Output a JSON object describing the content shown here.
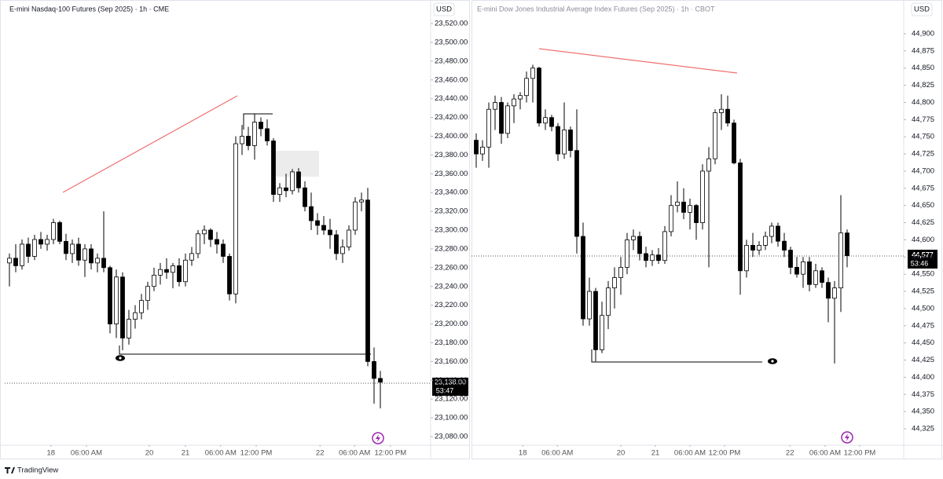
{
  "chart_data": [
    {
      "type": "candlestick",
      "title": "E-mini Nasdaq-100 Futures (Sep 2025) · 1h · CME",
      "currency": "USD",
      "last_price_label": "23,138.00",
      "countdown": "53:47",
      "up_color": "#ffffff",
      "down_color": "#000000",
      "grid": false,
      "xlim": [
        -0.75,
        67
      ],
      "ylim": [
        23068.3,
        23545.1
      ],
      "xticks": [
        {
          "value": 6.6,
          "label": "18"
        },
        {
          "value": 12.25,
          "label": "06:00 AM"
        },
        {
          "value": 22.25,
          "label": "20"
        },
        {
          "value": 28,
          "label": "21"
        },
        {
          "value": 33.6,
          "label": "06:00 AM"
        },
        {
          "value": 39.25,
          "label": "12:00 PM"
        },
        {
          "value": 49.4,
          "label": "22"
        },
        {
          "value": 54.9,
          "label": "06:00 AM"
        },
        {
          "value": 60.6,
          "label": "12:00 PM"
        }
      ],
      "yticks": [
        {
          "value": 23080,
          "label": "23,080.00"
        },
        {
          "value": 23100,
          "label": "23,100.00"
        },
        {
          "value": 23120,
          "label": "23,120.00"
        },
        {
          "value": 23140,
          "label": "23,140.00"
        },
        {
          "value": 23160,
          "label": "23,160.00"
        },
        {
          "value": 23180,
          "label": "23,180.00"
        },
        {
          "value": 23200,
          "label": "23,200.00"
        },
        {
          "value": 23220,
          "label": "23,220.00"
        },
        {
          "value": 23240,
          "label": "23,240.00"
        },
        {
          "value": 23260,
          "label": "23,260.00"
        },
        {
          "value": 23280,
          "label": "23,280.00"
        },
        {
          "value": 23300,
          "label": "23,300.00"
        },
        {
          "value": 23320,
          "label": "23,320.00"
        },
        {
          "value": 23340,
          "label": "23,340.00"
        },
        {
          "value": 23360,
          "label": "23,360.00"
        },
        {
          "value": 23380,
          "label": "23,380.00"
        },
        {
          "value": 23400,
          "label": "23,400.00"
        },
        {
          "value": 23420,
          "label": "23,420.00"
        },
        {
          "value": 23440,
          "label": "23,440.00"
        },
        {
          "value": 23460,
          "label": "23,460.00"
        },
        {
          "value": 23480,
          "label": "23,480.00"
        },
        {
          "value": 23500,
          "label": "23,500.00"
        },
        {
          "value": 23520,
          "label": "23,520.00"
        }
      ],
      "open": [
        23265,
        23270,
        23262,
        23285,
        23272,
        23290,
        23285,
        23290,
        23308,
        23288,
        23275,
        23285,
        23268,
        23280,
        23265,
        23270,
        23260,
        23200,
        23250,
        23185,
        23205,
        23212,
        23225,
        23240,
        23252,
        23258,
        23255,
        23262,
        23245,
        23268,
        23275,
        23296,
        23300,
        23290,
        23285,
        23272,
        23232,
        23392,
        23400,
        23390,
        23415,
        23408,
        23395,
        23338,
        23345,
        23342,
        23362,
        23345,
        23325,
        23310,
        23305,
        23300,
        23295,
        23275,
        23282,
        23300,
        23330,
        23332,
        23160,
        23142
      ],
      "high": [
        23275,
        23285,
        23290,
        23292,
        23295,
        23298,
        23295,
        23312,
        23310,
        23296,
        23290,
        23292,
        23285,
        23285,
        23275,
        23320,
        23262,
        23258,
        23255,
        23215,
        23220,
        23232,
        23245,
        23260,
        23265,
        23270,
        23265,
        23270,
        23275,
        23282,
        23300,
        23305,
        23302,
        23298,
        23290,
        23275,
        23400,
        23412,
        23410,
        23424,
        23420,
        23418,
        23398,
        23350,
        23360,
        23365,
        23366,
        23352,
        23340,
        23318,
        23315,
        23312,
        23300,
        23290,
        23305,
        23335,
        23340,
        23345,
        23175,
        23150
      ],
      "low": [
        23240,
        23255,
        23258,
        23265,
        23268,
        23280,
        23278,
        23285,
        23285,
        23268,
        23265,
        23262,
        23250,
        23258,
        23255,
        23255,
        23190,
        23185,
        23172,
        23178,
        23195,
        23205,
        23215,
        23235,
        23242,
        23248,
        23238,
        23240,
        23240,
        23262,
        23270,
        23285,
        23282,
        23275,
        23265,
        23225,
        23222,
        23380,
        23385,
        23375,
        23400,
        23390,
        23330,
        23330,
        23335,
        23338,
        23340,
        23320,
        23300,
        23295,
        23295,
        23280,
        23268,
        23265,
        23278,
        23295,
        23320,
        23155,
        23115,
        23110
      ],
      "close": [
        23270,
        23262,
        23285,
        23272,
        23290,
        23285,
        23290,
        23308,
        23288,
        23275,
        23285,
        23268,
        23280,
        23265,
        23270,
        23260,
        23200,
        23250,
        23185,
        23205,
        23212,
        23225,
        23240,
        23252,
        23258,
        23255,
        23262,
        23245,
        23268,
        23275,
        23296,
        23300,
        23290,
        23285,
        23272,
        23232,
        23392,
        23400,
        23390,
        23415,
        23408,
        23395,
        23338,
        23345,
        23342,
        23362,
        23345,
        23325,
        23310,
        23305,
        23300,
        23295,
        23275,
        23282,
        23300,
        23330,
        23332,
        23160,
        23142,
        23138
      ]
    },
    {
      "type": "candlestick",
      "title": "E-mini Dow Jones Industrial Average Index Futures (Sep 2025) · 1h · CBOT",
      "currency": "USD",
      "last_price_label": "44,577",
      "countdown": "53:46",
      "up_color": "#ffffff",
      "down_color": "#000000",
      "grid": false,
      "xlim": [
        -0.75,
        68
      ],
      "ylim": [
        44297.6,
        44949.1
      ],
      "xticks": [
        {
          "value": 7.4,
          "label": "18"
        },
        {
          "value": 12.9,
          "label": "06:00 AM"
        },
        {
          "value": 23,
          "label": "20"
        },
        {
          "value": 28.5,
          "label": "21"
        },
        {
          "value": 34,
          "label": "06:00 AM"
        },
        {
          "value": 39.5,
          "label": "12:00 PM"
        },
        {
          "value": 49.9,
          "label": "22"
        },
        {
          "value": 55.5,
          "label": "06:00 AM"
        },
        {
          "value": 61,
          "label": "12:00 PM"
        }
      ],
      "yticks": [
        {
          "value": 44325,
          "label": "44,325"
        },
        {
          "value": 44350,
          "label": "44,350"
        },
        {
          "value": 44375,
          "label": "44,375"
        },
        {
          "value": 44400,
          "label": "44,400"
        },
        {
          "value": 44425,
          "label": "44,425"
        },
        {
          "value": 44450,
          "label": "44,450"
        },
        {
          "value": 44475,
          "label": "44,475"
        },
        {
          "value": 44500,
          "label": "44,500"
        },
        {
          "value": 44525,
          "label": "44,525"
        },
        {
          "value": 44550,
          "label": "44,550"
        },
        {
          "value": 44575,
          "label": "44,575"
        },
        {
          "value": 44600,
          "label": "44,600"
        },
        {
          "value": 44625,
          "label": "44,625"
        },
        {
          "value": 44650,
          "label": "44,650"
        },
        {
          "value": 44675,
          "label": "44,675"
        },
        {
          "value": 44700,
          "label": "44,700"
        },
        {
          "value": 44725,
          "label": "44,725"
        },
        {
          "value": 44750,
          "label": "44,750"
        },
        {
          "value": 44775,
          "label": "44,775"
        },
        {
          "value": 44800,
          "label": "44,800"
        },
        {
          "value": 44825,
          "label": "44,825"
        },
        {
          "value": 44850,
          "label": "44,850"
        },
        {
          "value": 44875,
          "label": "44,875"
        },
        {
          "value": 44900,
          "label": "44,900"
        }
      ],
      "open": [
        44745,
        44725,
        44735,
        44790,
        44800,
        44755,
        44795,
        44805,
        44810,
        44835,
        44850,
        44770,
        44778,
        44765,
        44725,
        44760,
        44730,
        44605,
        44485,
        44525,
        44440,
        44490,
        44530,
        44545,
        44560,
        44600,
        44605,
        44580,
        44570,
        44578,
        44570,
        44612,
        44650,
        44655,
        44640,
        44650,
        44625,
        44700,
        44718,
        44785,
        44790,
        44770,
        44712,
        44555,
        44592,
        44585,
        44592,
        44605,
        44620,
        44598,
        44585,
        44560,
        44550,
        44568,
        44535,
        44555,
        44538,
        44515,
        44530,
        44610
      ],
      "high": [
        44755,
        44745,
        44800,
        44810,
        44808,
        44800,
        44812,
        44815,
        44845,
        44855,
        44852,
        44790,
        44782,
        44770,
        44800,
        44765,
        44790,
        44625,
        44545,
        44530,
        44510,
        44540,
        44560,
        44575,
        44610,
        44615,
        44612,
        44590,
        44585,
        44588,
        44620,
        44665,
        44685,
        44675,
        44660,
        44652,
        44710,
        44735,
        44790,
        44812,
        44810,
        44775,
        44718,
        44600,
        44610,
        44598,
        44612,
        44625,
        44625,
        44610,
        44590,
        44575,
        44575,
        44575,
        44565,
        44560,
        44545,
        44540,
        44665,
        44615
      ],
      "low": [
        44705,
        44715,
        44705,
        44760,
        44740,
        44748,
        44770,
        44790,
        44800,
        44800,
        44765,
        44760,
        44758,
        44715,
        44718,
        44720,
        44580,
        44475,
        44475,
        44423,
        44435,
        44470,
        44500,
        44520,
        44550,
        44585,
        44570,
        44560,
        44562,
        44565,
        44565,
        44605,
        44640,
        44630,
        44615,
        44600,
        44615,
        44560,
        44710,
        44760,
        44765,
        44710,
        44520,
        44545,
        44575,
        44578,
        44585,
        44595,
        44590,
        44575,
        44550,
        44545,
        44530,
        44525,
        44530,
        44530,
        44480,
        44420,
        44495,
        44560
      ],
      "close": [
        44725,
        44735,
        44790,
        44800,
        44755,
        44795,
        44805,
        44810,
        44835,
        44850,
        44770,
        44778,
        44765,
        44725,
        44760,
        44730,
        44605,
        44485,
        44525,
        44440,
        44490,
        44530,
        44545,
        44560,
        44600,
        44605,
        44580,
        44570,
        44578,
        44570,
        44612,
        44650,
        44655,
        44640,
        44650,
        44625,
        44700,
        44718,
        44785,
        44790,
        44770,
        44712,
        44555,
        44592,
        44585,
        44592,
        44605,
        44620,
        44598,
        44585,
        44560,
        44550,
        44568,
        44535,
        44555,
        44538,
        44515,
        44530,
        44610,
        44577
      ]
    }
  ],
  "footer": {
    "brand": "TradingView"
  }
}
